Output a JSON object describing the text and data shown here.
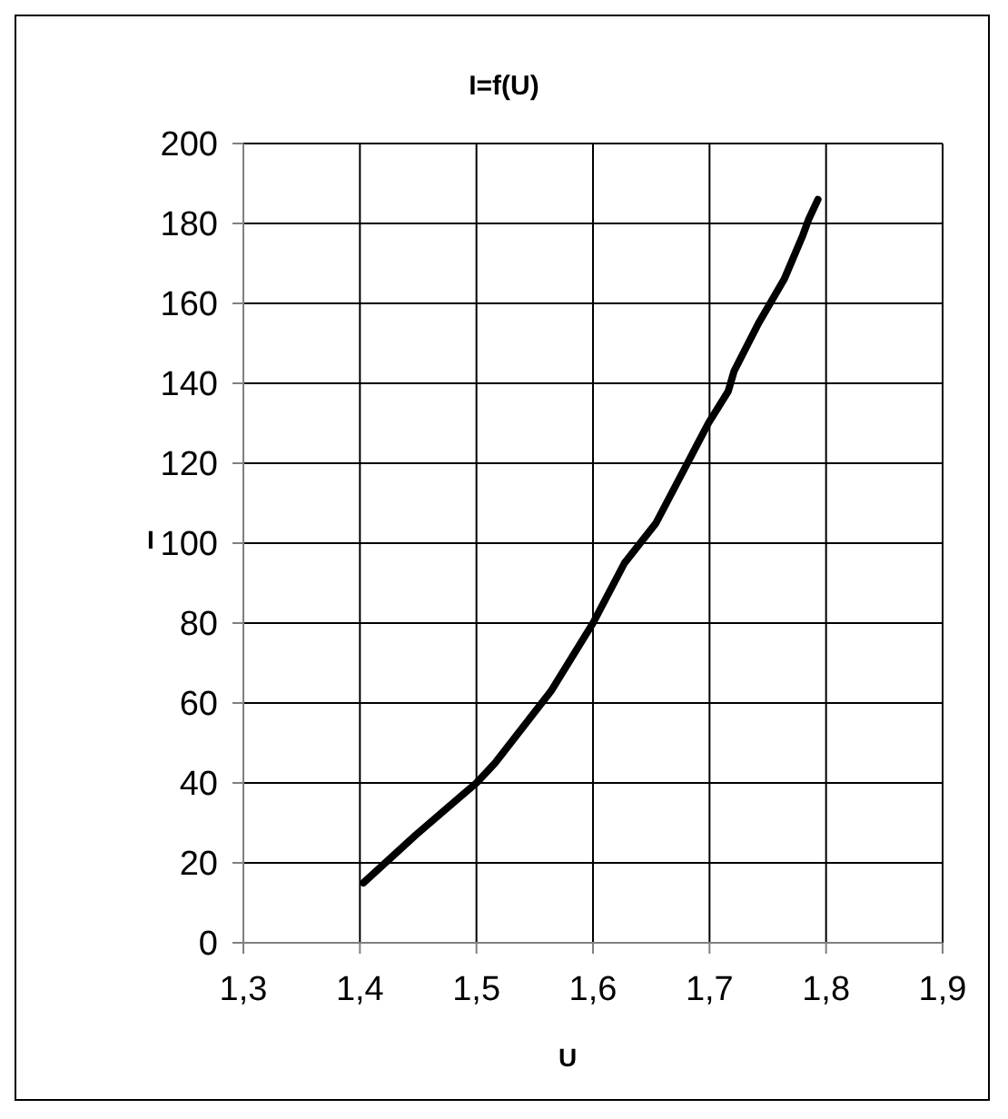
{
  "chart_data": {
    "type": "line",
    "title": "I=f(U)",
    "xlabel": "U",
    "ylabel": "I",
    "x": [
      1.403,
      1.448,
      1.5,
      1.516,
      1.564,
      1.6,
      1.627,
      1.654,
      1.681,
      1.699,
      1.716,
      1.721,
      1.742,
      1.764,
      1.78,
      1.785,
      1.793
    ],
    "series": [
      {
        "color": "#000000",
        "values": [
          15,
          27,
          40,
          45,
          63,
          80,
          95,
          105,
          120,
          130,
          138,
          143,
          155,
          166,
          177,
          181,
          186
        ]
      }
    ],
    "xlim": [
      1.3,
      1.9
    ],
    "xticks": [
      {
        "value": 1.3,
        "label": "1,3"
      },
      {
        "value": 1.4,
        "label": "1,4"
      },
      {
        "value": 1.5,
        "label": "1,5"
      },
      {
        "value": 1.6,
        "label": "1,6"
      },
      {
        "value": 1.7,
        "label": "1,7"
      },
      {
        "value": 1.8,
        "label": "1,8"
      },
      {
        "value": 1.9,
        "label": "1,9"
      }
    ],
    "ylim": [
      0,
      200
    ],
    "yticks": [
      0,
      20,
      40,
      60,
      80,
      100,
      120,
      140,
      160,
      180,
      200
    ],
    "grid": true,
    "marker": "none",
    "line_style": "solid"
  }
}
